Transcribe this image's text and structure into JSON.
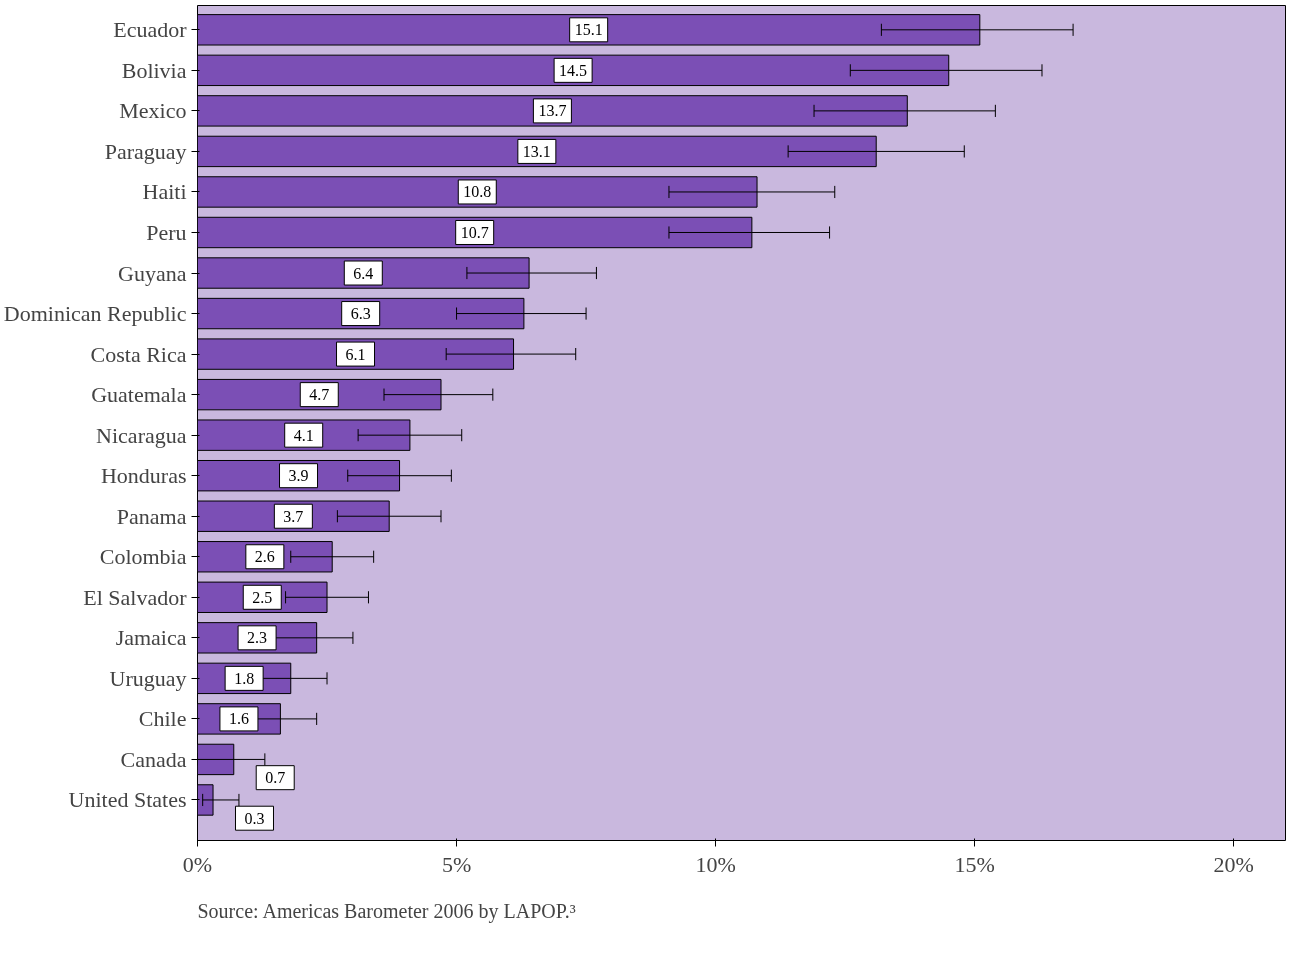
{
  "chart_data": {
    "type": "bar",
    "orientation": "horizontal",
    "categories": [
      "Ecuador",
      "Bolivia",
      "Mexico",
      "Paraguay",
      "Haiti",
      "Peru",
      "Guyana",
      "Dominican Republic",
      "Costa Rica",
      "Guatemala",
      "Nicaragua",
      "Honduras",
      "Panama",
      "Colombia",
      "El Salvador",
      "Jamaica",
      "Uruguay",
      "Chile",
      "Canada",
      "United States"
    ],
    "values": [
      15.1,
      14.5,
      13.7,
      13.1,
      10.8,
      10.7,
      6.4,
      6.3,
      6.1,
      4.7,
      4.1,
      3.9,
      3.7,
      2.6,
      2.5,
      2.3,
      1.8,
      1.6,
      0.7,
      0.3
    ],
    "errors": [
      [
        13.2,
        16.9
      ],
      [
        12.6,
        16.3
      ],
      [
        11.9,
        15.4
      ],
      [
        11.4,
        14.8
      ],
      [
        9.1,
        12.3
      ],
      [
        9.1,
        12.2
      ],
      [
        5.2,
        7.7
      ],
      [
        5.0,
        7.5
      ],
      [
        4.8,
        7.3
      ],
      [
        3.6,
        5.7
      ],
      [
        3.1,
        5.1
      ],
      [
        2.9,
        4.9
      ],
      [
        2.7,
        4.7
      ],
      [
        1.8,
        3.4
      ],
      [
        1.7,
        3.3
      ],
      [
        1.5,
        3.0
      ],
      [
        1.1,
        2.5
      ],
      [
        1.0,
        2.3
      ],
      [
        0.0,
        1.3
      ],
      [
        0.1,
        0.8
      ]
    ],
    "color": "#7b4fb5",
    "data_labels": true,
    "xlim": [
      0,
      21
    ],
    "xticks": [
      {
        "value": 0,
        "label": "0%"
      },
      {
        "value": 5,
        "label": "5%"
      },
      {
        "value": 10,
        "label": "10%"
      },
      {
        "value": 15,
        "label": "15%"
      },
      {
        "value": 20,
        "label": "20%"
      }
    ],
    "grid": false,
    "annotations": [
      "Source: Americas Barometer 2006 by LAPOP.³"
    ]
  }
}
